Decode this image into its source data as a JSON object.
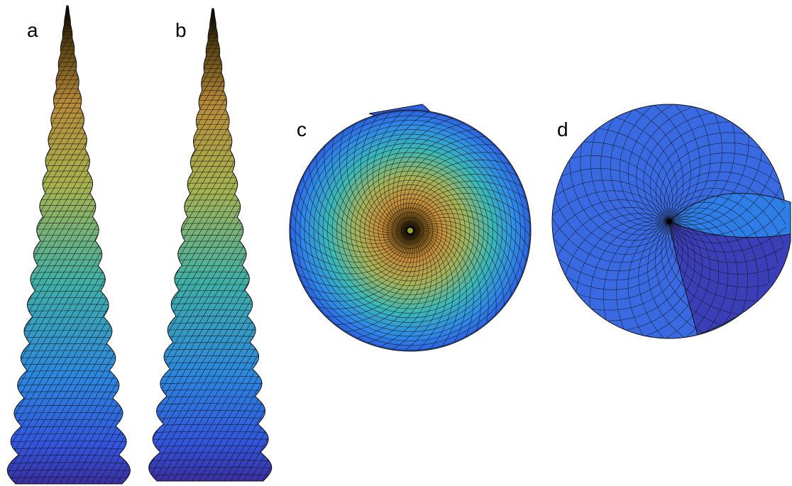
{
  "labels": [
    "a",
    "b",
    "c",
    "d"
  ]
}
